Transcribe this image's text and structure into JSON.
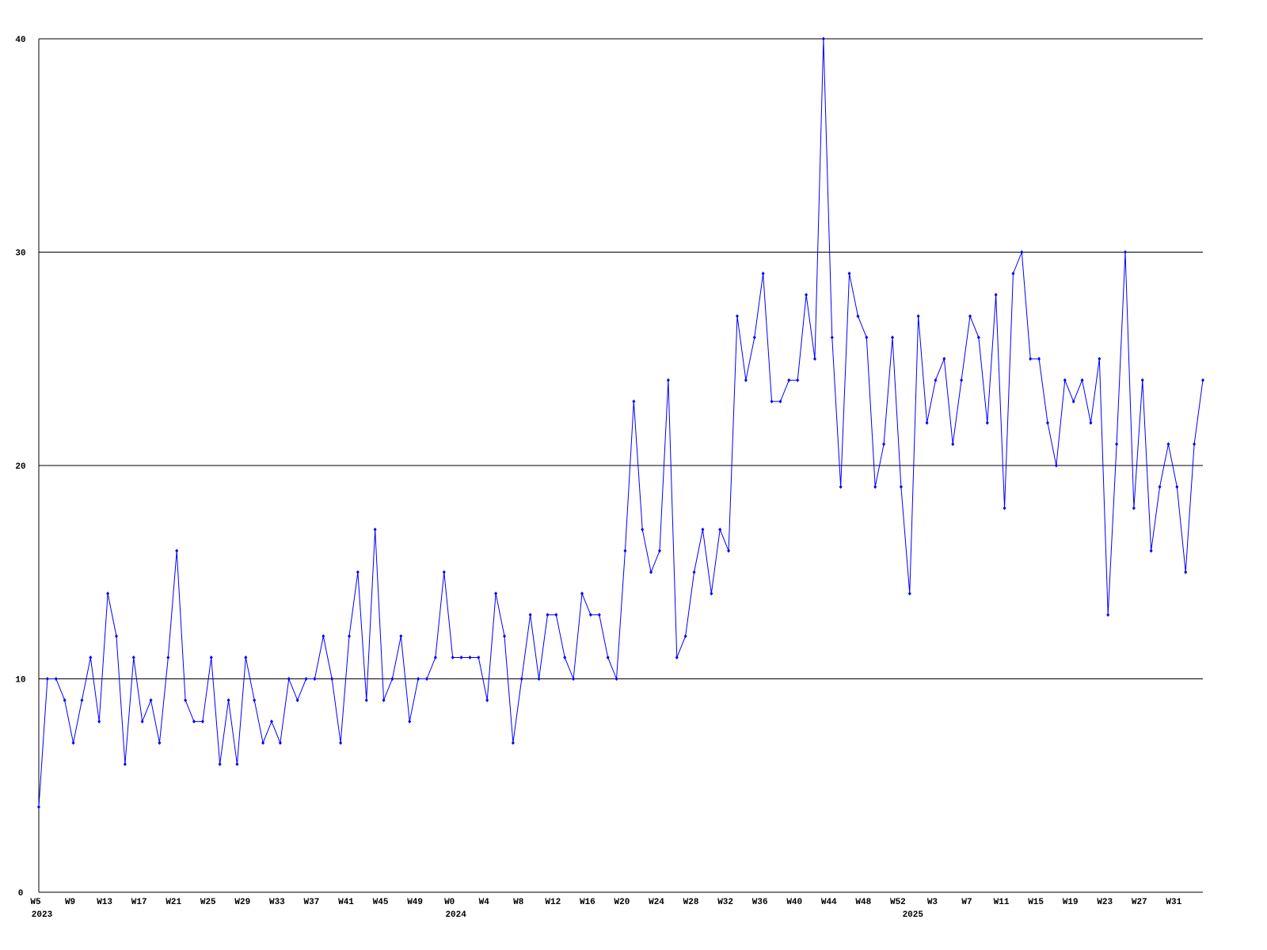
{
  "chart_data": {
    "type": "line",
    "categories": [
      "W5",
      null,
      null,
      null,
      "W9",
      null,
      null,
      null,
      "W13",
      null,
      null,
      null,
      "W17",
      null,
      null,
      null,
      "W21",
      null,
      null,
      null,
      "W25",
      null,
      null,
      null,
      "W29",
      null,
      null,
      null,
      "W33",
      null,
      null,
      null,
      "W37",
      null,
      null,
      null,
      "W41",
      null,
      null,
      null,
      "W45",
      null,
      null,
      null,
      "W49",
      null,
      null,
      null,
      "W0",
      null,
      null,
      null,
      "W4",
      null,
      null,
      null,
      "W8",
      null,
      null,
      null,
      "W12",
      null,
      null,
      null,
      "W16",
      null,
      null,
      null,
      "W20",
      null,
      null,
      null,
      "W24",
      null,
      null,
      null,
      "W28",
      null,
      null,
      null,
      "W32",
      null,
      null,
      null,
      "W36",
      null,
      null,
      null,
      "W40",
      null,
      null,
      null,
      "W44",
      null,
      null,
      null,
      "W48",
      null,
      null,
      null,
      "W52",
      null,
      null,
      null,
      "W3",
      null,
      null,
      null,
      "W7",
      null,
      null,
      null,
      "W11",
      null,
      null,
      null,
      "W15",
      null,
      null,
      null,
      "W19",
      null,
      null,
      null,
      "W23",
      null,
      null,
      null,
      "W27",
      null,
      null,
      null,
      "W31",
      null,
      null,
      null
    ],
    "category_years": [
      "2023",
      null,
      null,
      null,
      null,
      null,
      null,
      null,
      null,
      null,
      null,
      null,
      null,
      null,
      null,
      null,
      null,
      null,
      null,
      null,
      null,
      null,
      null,
      null,
      null,
      null,
      null,
      null,
      null,
      null,
      null,
      null,
      null,
      null,
      null,
      null,
      null,
      null,
      null,
      null,
      null,
      null,
      null,
      null,
      null,
      null,
      null,
      null,
      "2024",
      null,
      null,
      null,
      null,
      null,
      null,
      null,
      null,
      null,
      null,
      null,
      null,
      null,
      null,
      null,
      null,
      null,
      null,
      null,
      null,
      null,
      null,
      null,
      null,
      null,
      null,
      null,
      null,
      null,
      null,
      null,
      null,
      null,
      null,
      null,
      null,
      null,
      null,
      null,
      null,
      null,
      null,
      null,
      null,
      null,
      null,
      null,
      null,
      null,
      null,
      null,
      null,
      "2025",
      null,
      null,
      null,
      null,
      null,
      null,
      null,
      null,
      null,
      null,
      null,
      null,
      null,
      null,
      null,
      null,
      null,
      null,
      null,
      null,
      null,
      null,
      null,
      null,
      null,
      null,
      null,
      null,
      null,
      null,
      null,
      null,
      null,
      null
    ],
    "series": [
      {
        "color": "#0000ff",
        "values": [
          4,
          10,
          10,
          9,
          7,
          9,
          11,
          8,
          14,
          12,
          6,
          11,
          8,
          9,
          7,
          11,
          16,
          9,
          8,
          8,
          11,
          6,
          9,
          6,
          11,
          9,
          7,
          8,
          7,
          10,
          9,
          10,
          10,
          12,
          10,
          7,
          12,
          15,
          9,
          17,
          9,
          10,
          12,
          8,
          10,
          10,
          11,
          15,
          11,
          11,
          11,
          11,
          9,
          14,
          12,
          7,
          10,
          13,
          10,
          13,
          13,
          11,
          10,
          14,
          13,
          13,
          11,
          10,
          16,
          23,
          17,
          15,
          16,
          24,
          11,
          12,
          15,
          17,
          14,
          17,
          16,
          27,
          24,
          26,
          29,
          23,
          23,
          24,
          24,
          28,
          25,
          40,
          26,
          19,
          29,
          27,
          26,
          19,
          21,
          26,
          19,
          14,
          27,
          22,
          24,
          25,
          21,
          24,
          27,
          26,
          22,
          28,
          18,
          29,
          30,
          25,
          25,
          22,
          20,
          24,
          23,
          24,
          22,
          25,
          13,
          21,
          30,
          18,
          24,
          16,
          19,
          21,
          19,
          15,
          21,
          24
        ]
      }
    ],
    "ylim": [
      0,
      40
    ],
    "yticks": [
      0,
      10,
      20,
      30,
      40
    ],
    "grid": true
  }
}
